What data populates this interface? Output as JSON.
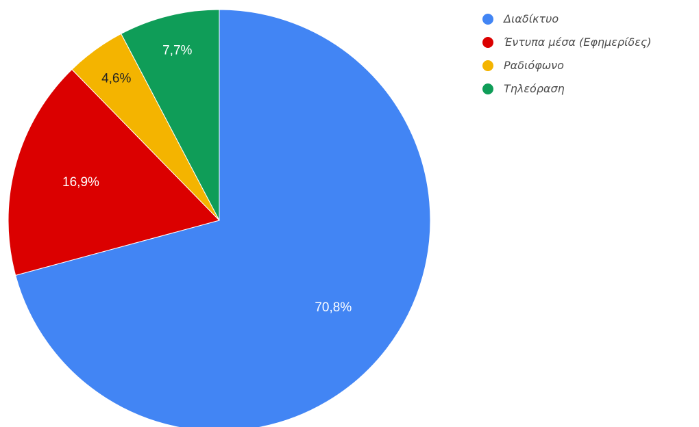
{
  "chart_data": {
    "type": "pie",
    "title": "",
    "legend_position": "right",
    "start_angle_deg": 0,
    "direction": "clockwise",
    "slices": [
      {
        "label": "Διαδίκτυο",
        "value": 70.8,
        "value_label": "70,8%",
        "color": "#4285F4",
        "label_color": "#ffffff"
      },
      {
        "label": "Έντυπα μέσα (Εφημερίδες)",
        "value": 16.9,
        "value_label": "16,9%",
        "color": "#DB0000",
        "label_color": "#ffffff"
      },
      {
        "label": "Ραδιόφωνο",
        "value": 4.6,
        "value_label": "4,6%",
        "color": "#F4B400",
        "label_color": "#222222"
      },
      {
        "label": "Τηλεόραση",
        "value": 7.7,
        "value_label": "7,7%",
        "color": "#0F9D58",
        "label_color": "#ffffff"
      }
    ]
  }
}
